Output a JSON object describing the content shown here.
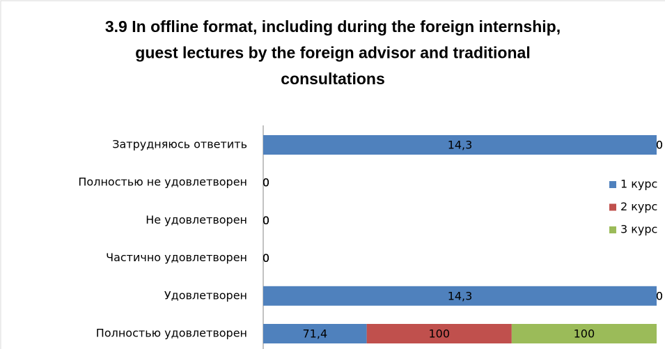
{
  "chart_data": {
    "type": "bar",
    "orientation": "horizontal",
    "stacked": "percent",
    "title": "3.9 In offline format, including during the foreign internship, guest lectures by the foreign advisor and traditional consultations",
    "categories": [
      "Затрудняюсь ответить",
      "Полностью не удовлетворен",
      "Не удовлетворен",
      "Частично удовлетворен",
      "Удовлетворен",
      "Полностью удовлетворен"
    ],
    "series": [
      {
        "name": "1 курс",
        "color": "#4f81bd",
        "values": [
          14.3,
          0,
          0,
          0,
          14.3,
          71.4
        ],
        "value_labels": [
          "14,3",
          "0",
          "0",
          "0",
          "14,3",
          "71,4"
        ]
      },
      {
        "name": "2 курс",
        "color": "#c0504d",
        "values": [
          0,
          0,
          0,
          0,
          0,
          100
        ]
      },
      {
        "name": "3 курс",
        "color": "#9bbb59",
        "values": [
          0,
          0,
          0,
          0,
          0,
          100
        ]
      }
    ],
    "legend": "right"
  }
}
